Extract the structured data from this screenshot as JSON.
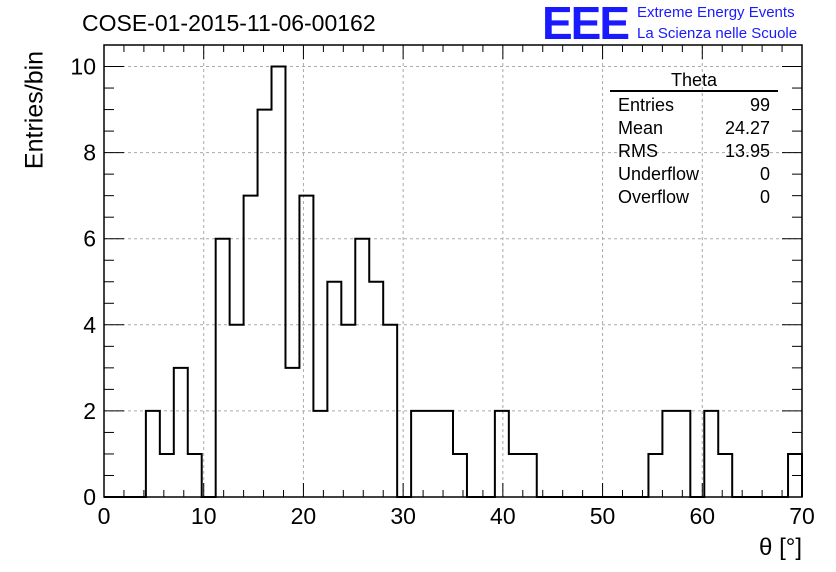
{
  "header": {
    "run_title": "COSE-01-2015-11-06-00162",
    "logo_mark": "EEE",
    "logo_line1": "Extreme Energy Events",
    "logo_line2": "La Scienza nelle Scuole"
  },
  "stats_box": {
    "title": "Theta",
    "rows": [
      {
        "label": "Entries",
        "value": "99"
      },
      {
        "label": "Mean",
        "value": "24.27"
      },
      {
        "label": "RMS",
        "value": "13.95"
      },
      {
        "label": "Underflow",
        "value": "0"
      },
      {
        "label": "Overflow",
        "value": "0"
      }
    ]
  },
  "colors": {
    "logo": "#1a1aff",
    "line": "#000000",
    "grid": "#aaaaaa"
  },
  "chart_data": {
    "type": "histogram",
    "xlabel": "θ [°]",
    "ylabel": "Entries/bin",
    "xlim": [
      0,
      70
    ],
    "ylim": [
      0,
      10.5
    ],
    "xticks": [
      0,
      10,
      20,
      30,
      40,
      50,
      60,
      70
    ],
    "yticks": [
      0,
      2,
      4,
      6,
      8,
      10
    ],
    "grid": true,
    "bin_width": 1.4,
    "bin_edges_start": 0,
    "values": [
      0,
      0,
      0,
      2,
      1,
      3,
      1,
      0,
      6,
      4,
      7,
      9,
      10,
      3,
      7,
      2,
      5,
      4,
      6,
      5,
      4,
      0,
      2,
      2,
      2,
      1,
      0,
      0,
      2,
      1,
      1,
      0,
      0,
      0,
      0,
      0,
      0,
      0,
      0,
      1,
      2,
      2,
      0,
      2,
      1,
      0,
      0,
      0,
      0,
      1
    ]
  }
}
